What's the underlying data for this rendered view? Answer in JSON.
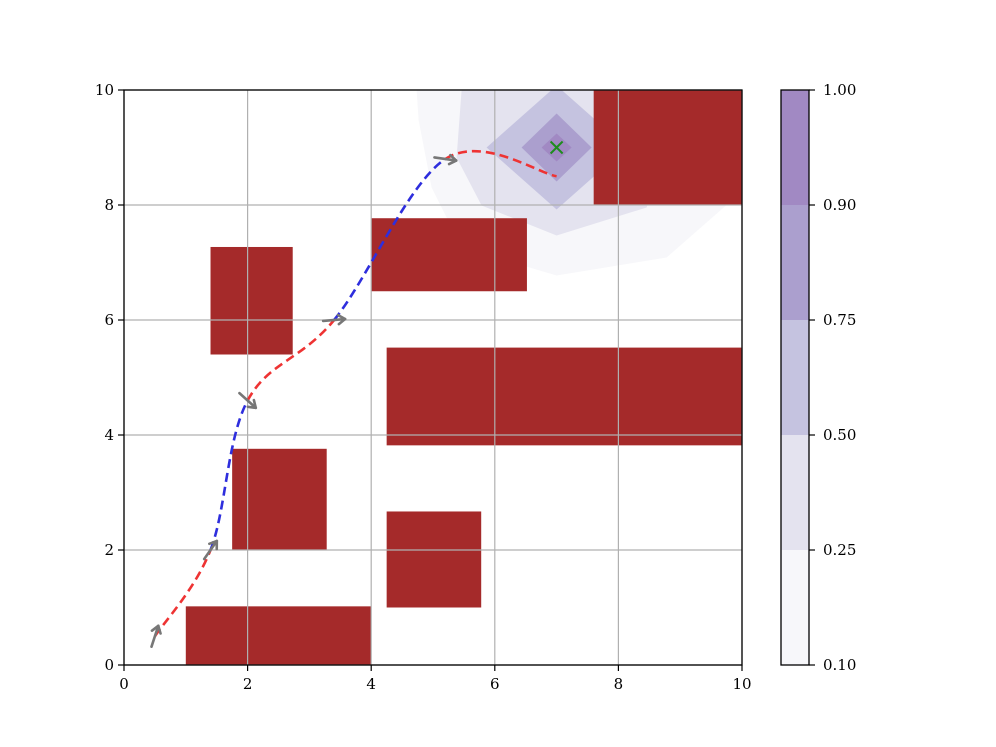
{
  "chart_data": {
    "type": "contour",
    "xlim": [
      0,
      10
    ],
    "ylim": [
      0,
      10
    ],
    "xticks": [
      "0",
      "2",
      "4",
      "6",
      "8",
      "10"
    ],
    "yticks": [
      "0",
      "2",
      "4",
      "6",
      "8",
      "10"
    ],
    "grid": true,
    "obstacle_color": "#a52a2a",
    "obstacles": [
      {
        "x": 1.0,
        "y": 0.0,
        "w": 3.0,
        "h": 1.02
      },
      {
        "x": 4.25,
        "y": 1.0,
        "w": 1.53,
        "h": 1.67
      },
      {
        "x": 1.75,
        "y": 2.0,
        "w": 1.53,
        "h": 1.76
      },
      {
        "x": 4.25,
        "y": 3.82,
        "w": 5.75,
        "h": 1.7
      },
      {
        "x": 1.4,
        "y": 5.4,
        "w": 1.33,
        "h": 1.87
      },
      {
        "x": 4.0,
        "y": 6.5,
        "w": 2.52,
        "h": 1.27
      },
      {
        "x": 7.6,
        "y": 8.0,
        "w": 2.4,
        "h": 2.0
      }
    ],
    "contour": {
      "center": [
        7.0,
        9.0
      ],
      "levels": [
        0.1,
        0.25,
        0.5,
        0.75,
        0.9,
        1.0
      ],
      "colors": [
        "#f7f7fa",
        "#e4e3ef",
        "#c5c3e0",
        "#ab9fce",
        "#a189c3"
      ]
    },
    "goal": {
      "x": 7.0,
      "y": 9.0,
      "color": "#1e8c1e"
    },
    "path": {
      "points": [
        [
          0.5,
          0.5
        ],
        [
          1.4,
          2.0
        ],
        [
          2.0,
          4.6
        ],
        [
          3.4,
          6.0
        ],
        [
          5.2,
          8.8
        ],
        [
          7.0,
          8.5
        ]
      ],
      "segment_colors": [
        "#ee3333",
        "#2e2edd",
        "#ee3333",
        "#2e2edd",
        "#ee3333"
      ]
    },
    "headings": [
      {
        "x": 0.5,
        "y": 0.5,
        "angle_deg": 72
      },
      {
        "x": 1.4,
        "y": 2.0,
        "angle_deg": 55
      },
      {
        "x": 2.0,
        "y": 4.6,
        "angle_deg": -42
      },
      {
        "x": 3.4,
        "y": 6.0,
        "angle_deg": 5
      },
      {
        "x": 5.2,
        "y": 8.8,
        "angle_deg": -8
      }
    ],
    "arrow_color": "#777777",
    "colorbar": {
      "ticks": [
        "0.10",
        "0.25",
        "0.50",
        "0.75",
        "0.90",
        "1.00"
      ]
    }
  }
}
